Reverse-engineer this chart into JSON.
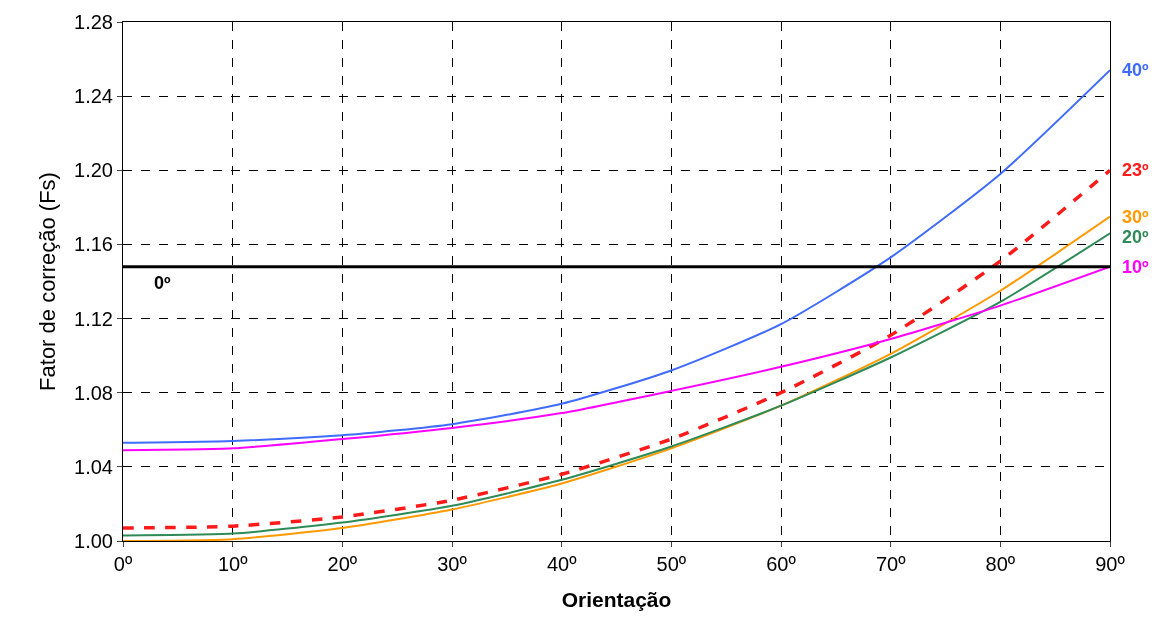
{
  "chart_data": {
    "type": "line",
    "xlabel": "Orientação",
    "ylabel": "Fator de correção (Fs)",
    "x": [
      0,
      10,
      20,
      30,
      40,
      50,
      60,
      70,
      80,
      90
    ],
    "series": [
      {
        "name": "40º",
        "color": "#3f6bff",
        "values": [
          1.053,
          1.054,
          1.057,
          1.063,
          1.074,
          1.092,
          1.117,
          1.153,
          1.198,
          1.254
        ]
      },
      {
        "name": "23º",
        "color": "#ff1a1a",
        "line_style": "dashed",
        "values": [
          1.007,
          1.008,
          1.013,
          1.022,
          1.036,
          1.055,
          1.08,
          1.111,
          1.151,
          1.2
        ]
      },
      {
        "name": "30º",
        "color": "#ff9900",
        "values": [
          1.0,
          1.001,
          1.007,
          1.017,
          1.031,
          1.05,
          1.073,
          1.101,
          1.135,
          1.175
        ]
      },
      {
        "name": "20º",
        "color": "#2e8b57",
        "values": [
          1.003,
          1.004,
          1.01,
          1.019,
          1.033,
          1.051,
          1.073,
          1.099,
          1.129,
          1.166
        ]
      },
      {
        "name": "10º",
        "color": "#ff00ff",
        "values": [
          1.049,
          1.05,
          1.055,
          1.061,
          1.069,
          1.081,
          1.094,
          1.109,
          1.127,
          1.148
        ]
      },
      {
        "name": "0º",
        "color": "#000000",
        "x": [
          0,
          90
        ],
        "values": [
          1.148,
          1.148
        ]
      }
    ],
    "xlim": [
      0,
      90
    ],
    "xticks": [
      {
        "value": 0,
        "label": "0º"
      },
      {
        "value": 10,
        "label": "10º"
      },
      {
        "value": 20,
        "label": "20º"
      },
      {
        "value": 30,
        "label": "30º"
      },
      {
        "value": 40,
        "label": "40º"
      },
      {
        "value": 50,
        "label": "50º"
      },
      {
        "value": 60,
        "label": "60º"
      },
      {
        "value": 70,
        "label": "70º"
      },
      {
        "value": 80,
        "label": "80º"
      },
      {
        "value": 90,
        "label": "90º"
      }
    ],
    "ylim": [
      1.0,
      1.28
    ],
    "yticks": [
      {
        "value": 1.0,
        "label": "1.00"
      },
      {
        "value": 1.04,
        "label": "1.04"
      },
      {
        "value": 1.08,
        "label": "1.08"
      },
      {
        "value": 1.12,
        "label": "1.12"
      },
      {
        "value": 1.16,
        "label": "1.16"
      },
      {
        "value": 1.2,
        "label": "1.20"
      },
      {
        "value": 1.24,
        "label": "1.24"
      },
      {
        "value": 1.28,
        "label": "1.28"
      }
    ],
    "grid": true,
    "legend": false,
    "line_style": "solid",
    "marker": "none"
  }
}
